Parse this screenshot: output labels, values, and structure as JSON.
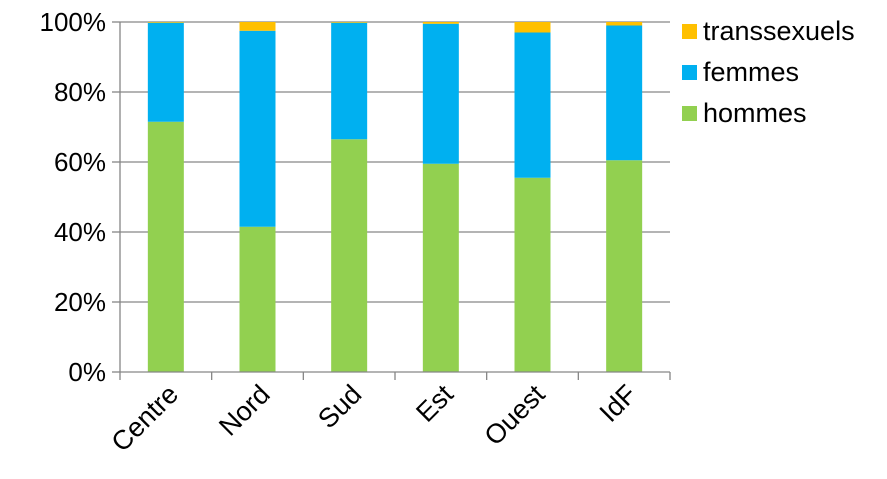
{
  "chart_data": {
    "type": "bar",
    "stacked": "percent",
    "categories": [
      "Centre",
      "Nord",
      "Sud",
      "Est",
      "Ouest",
      "IdF"
    ],
    "series": [
      {
        "name": "hommes",
        "values": [
          71.5,
          41.5,
          66.5,
          59.5,
          55.5,
          60.5
        ],
        "color": "#92D050"
      },
      {
        "name": "femmes",
        "values": [
          28.3,
          56.0,
          33.3,
          40.0,
          41.5,
          38.5
        ],
        "color": "#00B0F0"
      },
      {
        "name": "transsexuels",
        "values": [
          0.2,
          2.5,
          0.2,
          0.5,
          3.0,
          1.0
        ],
        "color": "#FFC000"
      }
    ],
    "ylim": [
      0,
      100
    ],
    "yticks": [
      "0%",
      "20%",
      "40%",
      "60%",
      "80%",
      "100%"
    ],
    "grid": true,
    "legend_position": "right",
    "legend_order": [
      "transsexuels",
      "femmes",
      "hommes"
    ]
  }
}
